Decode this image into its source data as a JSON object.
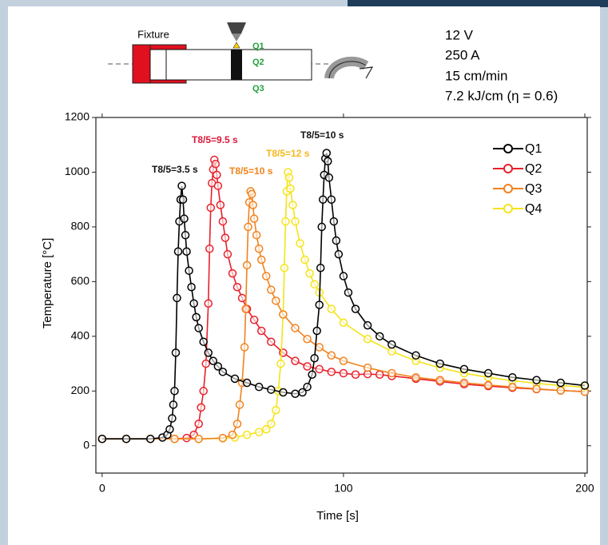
{
  "diagram": {
    "fixture": "Fixture",
    "points": [
      "Q1",
      "Q2",
      "Q3"
    ]
  },
  "parameters": [
    "12 V",
    "250 A",
    "15 cm/min",
    "7.2 kJ/cm (η = 0.6)"
  ],
  "chart_data": {
    "type": "line",
    "x_label": "Time [s]",
    "y_label": "Temperature [°C]",
    "xlim": [
      -2.6,
      201
    ],
    "ylim": [
      -100,
      1200
    ],
    "xticks": [
      0,
      100,
      200
    ],
    "yticks": [
      0,
      200,
      400,
      600,
      800,
      1000,
      1200
    ],
    "legend": "top-right",
    "annotations": [
      {
        "text": "T8/5=3.5 s",
        "color": "#111111"
      },
      {
        "text": "T8/5=9.5 s",
        "color": "#d9173a"
      },
      {
        "text": "T8/5=10 s",
        "color": "#f0831a"
      },
      {
        "text": "T8/5=12 s",
        "color": "#f5b81a"
      },
      {
        "text": "T8/5=10 s",
        "color": "#111111"
      }
    ],
    "series": [
      {
        "name": "Q1",
        "color": "#000000",
        "x": [
          0,
          10,
          20,
          25,
          27,
          28,
          29,
          29.5,
          30,
          30.5,
          31,
          31.5,
          32,
          32.5,
          33,
          33.5,
          34,
          34.5,
          35,
          36,
          37,
          38,
          39,
          40,
          42,
          44,
          46,
          48,
          50,
          55,
          60,
          65,
          70,
          75,
          80,
          83,
          85,
          87,
          88,
          89,
          90,
          90.5,
          91,
          91.5,
          92,
          92.5,
          93,
          93.5,
          94,
          95,
          96,
          97,
          98,
          100,
          102,
          105,
          110,
          115,
          120,
          130,
          140,
          150,
          160,
          170,
          180,
          190,
          200
        ],
        "values": [
          25,
          25,
          25,
          30,
          40,
          60,
          100,
          150,
          200,
          340,
          540,
          710,
          820,
          900,
          950,
          900,
          830,
          770,
          710,
          640,
          580,
          520,
          470,
          430,
          380,
          340,
          310,
          290,
          270,
          245,
          230,
          215,
          205,
          195,
          190,
          195,
          215,
          260,
          320,
          420,
          515,
          650,
          800,
          900,
          990,
          1050,
          1070,
          1040,
          980,
          900,
          820,
          750,
          700,
          620,
          560,
          500,
          440,
          400,
          370,
          330,
          300,
          280,
          265,
          250,
          240,
          230,
          220
        ]
      },
      {
        "name": "Q2",
        "color": "#e8202a",
        "x": [
          0,
          10,
          20,
          30,
          35,
          38,
          40,
          41,
          42,
          43,
          44,
          44.5,
          45,
          45.5,
          46,
          46.5,
          47,
          47.5,
          48,
          49,
          50,
          51,
          52,
          54,
          56,
          58,
          60,
          63,
          66,
          70,
          75,
          80,
          85,
          90,
          95,
          100,
          105,
          110,
          115,
          120,
          130,
          140,
          150,
          160,
          170,
          180,
          190,
          200
        ],
        "values": [
          25,
          25,
          25,
          25,
          28,
          40,
          80,
          140,
          200,
          300,
          520,
          720,
          870,
          960,
          1010,
          1045,
          1030,
          990,
          950,
          880,
          820,
          760,
          700,
          630,
          580,
          540,
          500,
          460,
          420,
          380,
          340,
          310,
          290,
          280,
          270,
          265,
          260,
          262,
          260,
          255,
          245,
          235,
          225,
          218,
          212,
          207,
          202,
          198
        ]
      },
      {
        "name": "Q3",
        "color": "#f0821c",
        "x": [
          0,
          10,
          20,
          30,
          40,
          50,
          54,
          56,
          57,
          58,
          59,
          59.5,
          60,
          60.5,
          61,
          61.5,
          62,
          62.5,
          63,
          64,
          65,
          66,
          68,
          70,
          72,
          75,
          80,
          85,
          90,
          95,
          100,
          110,
          120,
          130,
          140,
          150,
          160,
          170,
          180,
          190,
          200
        ],
        "values": [
          25,
          25,
          25,
          25,
          25,
          28,
          40,
          80,
          150,
          230,
          360,
          500,
          660,
          800,
          890,
          930,
          920,
          880,
          830,
          770,
          720,
          680,
          620,
          570,
          530,
          480,
          430,
          390,
          360,
          330,
          310,
          285,
          265,
          250,
          240,
          230,
          222,
          215,
          208,
          202,
          197
        ]
      },
      {
        "name": "Q4",
        "color": "#f5e31a",
        "x": [
          0,
          10,
          20,
          30,
          40,
          50,
          55,
          60,
          65,
          68,
          70,
          72,
          73,
          74,
          75,
          75.5,
          76,
          76.5,
          77,
          77.5,
          78,
          79,
          80,
          82,
          84,
          86,
          88,
          90,
          95,
          100,
          110,
          120,
          130,
          140,
          150,
          160,
          170,
          180,
          190,
          200
        ],
        "values": [
          25,
          25,
          25,
          25,
          25,
          27,
          30,
          40,
          50,
          60,
          80,
          130,
          200,
          300,
          480,
          650,
          820,
          930,
          1000,
          980,
          940,
          880,
          820,
          740,
          680,
          630,
          590,
          560,
          500,
          450,
          390,
          345,
          310,
          285,
          265,
          250,
          238,
          228,
          220,
          214
        ]
      }
    ]
  }
}
